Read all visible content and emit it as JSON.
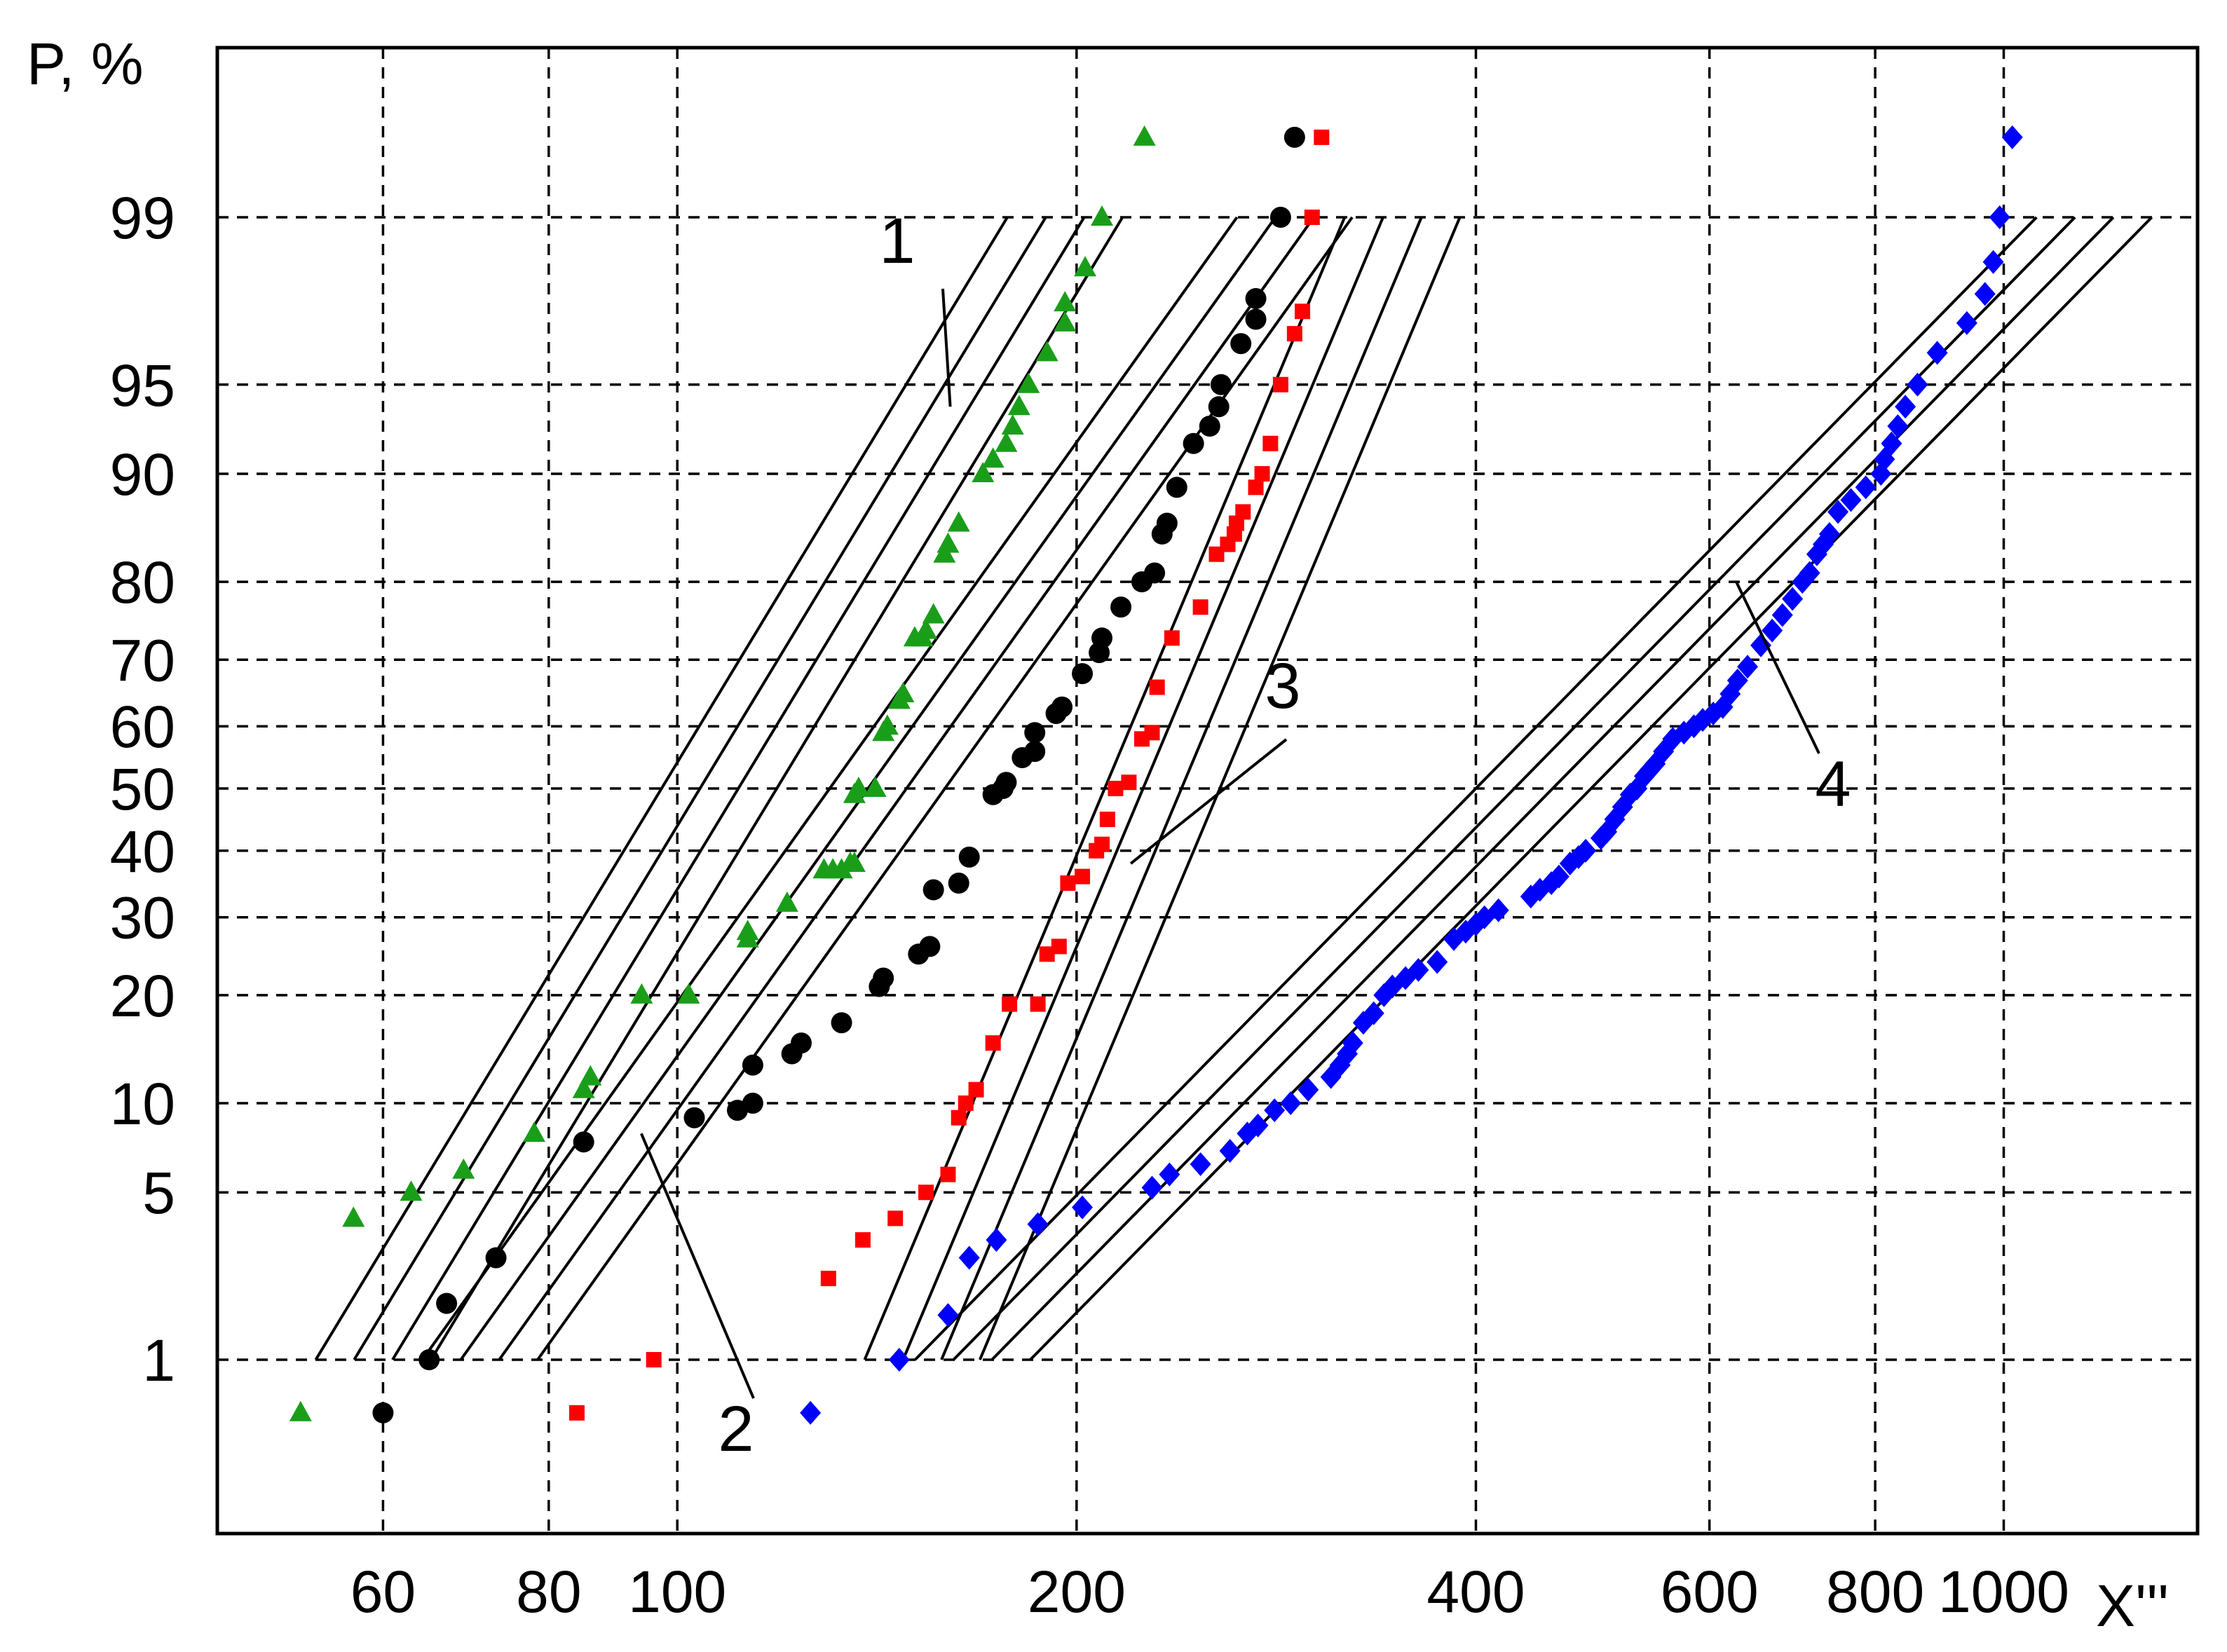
{
  "chart_data": {
    "type": "scatter",
    "x_scale": "log",
    "y_scale": "normal-probability",
    "xlabel": "X'''",
    "ylabel": "P, %",
    "xlim": [
      45,
      1400
    ],
    "x_ticks": [
      60,
      80,
      100,
      200,
      400,
      600,
      800,
      1000
    ],
    "y_ticks": [
      1,
      5,
      10,
      20,
      30,
      40,
      50,
      60,
      70,
      80,
      90,
      95,
      99
    ],
    "grid": true,
    "series_colors": {
      "1": "#1a9e1a",
      "2": "#000000",
      "3": "#ff0000",
      "4": "#0000ff"
    },
    "series_markers": {
      "1": "triangle",
      "2": "circle",
      "3": "square",
      "4": "diamond"
    },
    "callouts": [
      {
        "label": "1",
        "series": "1"
      },
      {
        "label": "2",
        "series": "2"
      },
      {
        "label": "3",
        "series": "3"
      },
      {
        "label": "4",
        "series": "4"
      }
    ],
    "series": [
      {
        "key": "1",
        "points": [
          [
            52,
            0.55
          ],
          [
            57,
            4.0
          ],
          [
            63,
            5.0
          ],
          [
            69,
            6.0
          ],
          [
            78,
            8.0
          ],
          [
            85,
            11
          ],
          [
            86,
            12
          ],
          [
            94,
            20
          ],
          [
            102,
            20
          ],
          [
            113,
            27
          ],
          [
            113,
            28
          ],
          [
            121,
            32
          ],
          [
            129,
            37
          ],
          [
            131,
            37
          ],
          [
            133,
            37
          ],
          [
            135,
            38
          ],
          [
            136,
            38
          ],
          [
            136,
            49
          ],
          [
            137,
            50
          ],
          [
            141,
            50
          ],
          [
            143,
            59
          ],
          [
            144,
            60
          ],
          [
            147,
            64
          ],
          [
            148,
            65
          ],
          [
            151,
            73
          ],
          [
            153,
            73
          ],
          [
            154,
            74
          ],
          [
            156,
            76
          ],
          [
            159,
            83
          ],
          [
            160,
            84
          ],
          [
            163,
            86
          ],
          [
            170,
            90
          ],
          [
            173,
            91
          ],
          [
            177,
            92
          ],
          [
            179,
            93
          ],
          [
            181,
            94
          ],
          [
            184,
            95
          ],
          [
            190,
            96.2
          ],
          [
            196,
            97.1
          ],
          [
            196,
            97.6
          ],
          [
            203,
            98.3
          ],
          [
            209,
            99.0
          ],
          [
            225,
            99.6
          ]
        ],
        "fit": {
          "x": [
            59,
            196
          ],
          "spread": 0.1
        }
      },
      {
        "key": "2",
        "points": [
          [
            60,
            0.55
          ],
          [
            65,
            1.0
          ],
          [
            67,
            1.8
          ],
          [
            73,
            2.8
          ],
          [
            85,
            7.5
          ],
          [
            103,
            9.0
          ],
          [
            111,
            9.5
          ],
          [
            114,
            10
          ],
          [
            114,
            13
          ],
          [
            122,
            14
          ],
          [
            124,
            15
          ],
          [
            133,
            17
          ],
          [
            142,
            21
          ],
          [
            143,
            22
          ],
          [
            152,
            25
          ],
          [
            155,
            26
          ],
          [
            156,
            34
          ],
          [
            163,
            35
          ],
          [
            166,
            39
          ],
          [
            173,
            49
          ],
          [
            176,
            50
          ],
          [
            177,
            51
          ],
          [
            182,
            55
          ],
          [
            186,
            56
          ],
          [
            186,
            59
          ],
          [
            193,
            62
          ],
          [
            195,
            63
          ],
          [
            202,
            68
          ],
          [
            208,
            71
          ],
          [
            209,
            73
          ],
          [
            216,
            77
          ],
          [
            224,
            80
          ],
          [
            229,
            81
          ],
          [
            232,
            85
          ],
          [
            234,
            86
          ],
          [
            238,
            89
          ],
          [
            245,
            92
          ],
          [
            252,
            93
          ],
          [
            256,
            94
          ],
          [
            257,
            95
          ],
          [
            266,
            96.5
          ],
          [
            273,
            97.2
          ],
          [
            273,
            97.7
          ],
          [
            285,
            99.0
          ],
          [
            292,
            99.6
          ]
        ],
        "fit": {
          "x": [
            71,
            292
          ],
          "spread": 0.1
        }
      },
      {
        "key": "3",
        "points": [
          [
            84,
            0.55
          ],
          [
            96,
            1.0
          ],
          [
            130,
            2.3
          ],
          [
            138,
            3.3
          ],
          [
            146,
            4.0
          ],
          [
            154,
            5.0
          ],
          [
            160,
            5.8
          ],
          [
            163,
            9.0
          ],
          [
            165,
            10
          ],
          [
            168,
            11
          ],
          [
            173,
            15
          ],
          [
            178,
            19
          ],
          [
            187,
            19
          ],
          [
            190,
            25
          ],
          [
            194,
            26
          ],
          [
            197,
            35
          ],
          [
            202,
            36
          ],
          [
            207,
            40
          ],
          [
            209,
            41
          ],
          [
            211,
            45
          ],
          [
            214,
            50
          ],
          [
            219,
            51
          ],
          [
            224,
            58
          ],
          [
            228,
            59
          ],
          [
            230,
            66
          ],
          [
            236,
            73
          ],
          [
            248,
            77
          ],
          [
            255,
            83
          ],
          [
            260,
            84
          ],
          [
            263,
            85
          ],
          [
            264,
            86
          ],
          [
            267,
            87
          ],
          [
            273,
            89
          ],
          [
            276,
            90
          ],
          [
            280,
            92
          ],
          [
            285,
            95
          ],
          [
            292,
            96.8
          ],
          [
            296,
            97.4
          ],
          [
            301,
            99.0
          ],
          [
            306,
            99.6
          ]
        ],
        "fit": {
          "x": [
            153,
            352
          ],
          "spread": 0.1
        }
      },
      {
        "key": "4",
        "points": [
          [
            126,
            0.55
          ],
          [
            147,
            1.0
          ],
          [
            160,
            1.6
          ],
          [
            166,
            2.8
          ],
          [
            174,
            3.3
          ],
          [
            187,
            3.8
          ],
          [
            202,
            4.4
          ],
          [
            228,
            5.2
          ],
          [
            235,
            5.8
          ],
          [
            248,
            6.3
          ],
          [
            261,
            7.0
          ],
          [
            269,
            8.0
          ],
          [
            274,
            8.5
          ],
          [
            282,
            9.5
          ],
          [
            290,
            10
          ],
          [
            299,
            11
          ],
          [
            311,
            12
          ],
          [
            316,
            13
          ],
          [
            320,
            14
          ],
          [
            323,
            15
          ],
          [
            329,
            17
          ],
          [
            335,
            18
          ],
          [
            341,
            20
          ],
          [
            346,
            21
          ],
          [
            354,
            22
          ],
          [
            362,
            23
          ],
          [
            374,
            24
          ],
          [
            385,
            27
          ],
          [
            393,
            28
          ],
          [
            400,
            29
          ],
          [
            406,
            30
          ],
          [
            416,
            31
          ],
          [
            440,
            33
          ],
          [
            447,
            34
          ],
          [
            456,
            35
          ],
          [
            462,
            36
          ],
          [
            471,
            38
          ],
          [
            478,
            39
          ],
          [
            484,
            40
          ],
          [
            497,
            42
          ],
          [
            502,
            43
          ],
          [
            509,
            45
          ],
          [
            516,
            47
          ],
          [
            523,
            49
          ],
          [
            529,
            50
          ],
          [
            536,
            52
          ],
          [
            541,
            53
          ],
          [
            546,
            54
          ],
          [
            554,
            56
          ],
          [
            563,
            58
          ],
          [
            574,
            59
          ],
          [
            584,
            60
          ],
          [
            593,
            61
          ],
          [
            604,
            62
          ],
          [
            614,
            63
          ],
          [
            622,
            65
          ],
          [
            630,
            67
          ],
          [
            641,
            69
          ],
          [
            656,
            72
          ],
          [
            669,
            74
          ],
          [
            681,
            76
          ],
          [
            693,
            78
          ],
          [
            705,
            80
          ],
          [
            714,
            81
          ],
          [
            723,
            83
          ],
          [
            731,
            84
          ],
          [
            739,
            85
          ],
          [
            750,
            87
          ],
          [
            767,
            88
          ],
          [
            787,
            89
          ],
          [
            808,
            90
          ],
          [
            813,
            91
          ],
          [
            823,
            92
          ],
          [
            832,
            93
          ],
          [
            843,
            94
          ],
          [
            861,
            95
          ],
          [
            891,
            96.2
          ],
          [
            938,
            97.1
          ],
          [
            968,
            97.8
          ],
          [
            982,
            98.4
          ],
          [
            993,
            99.0
          ],
          [
            1015,
            99.6
          ]
        ],
        "fit": {
          "x": [
            167,
            1170
          ],
          "spread": 0.1
        }
      }
    ]
  }
}
